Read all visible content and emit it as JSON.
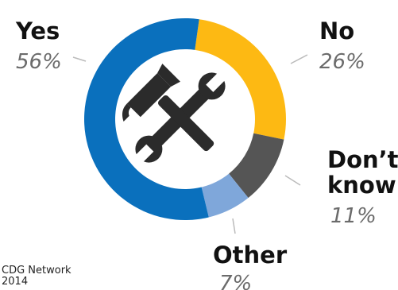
{
  "chart_data": {
    "type": "pie",
    "variant": "donut",
    "categories": [
      "Yes",
      "No",
      "Don’t know",
      "Other"
    ],
    "values": [
      56,
      26,
      11,
      7
    ],
    "value_labels": [
      "56%",
      "26%",
      "11%",
      "7%"
    ],
    "colors": [
      "#0a70bd",
      "#fdb913",
      "#555555",
      "#7fa7da"
    ],
    "center_icon": "hammer-and-wrench-icon",
    "labels": {
      "yes": "Yes",
      "no": "No",
      "dont_know_line1": "Don’t",
      "dont_know_line2": "know",
      "other": "Other"
    }
  },
  "source": {
    "line1": "CDG Network",
    "line2": "2014"
  }
}
